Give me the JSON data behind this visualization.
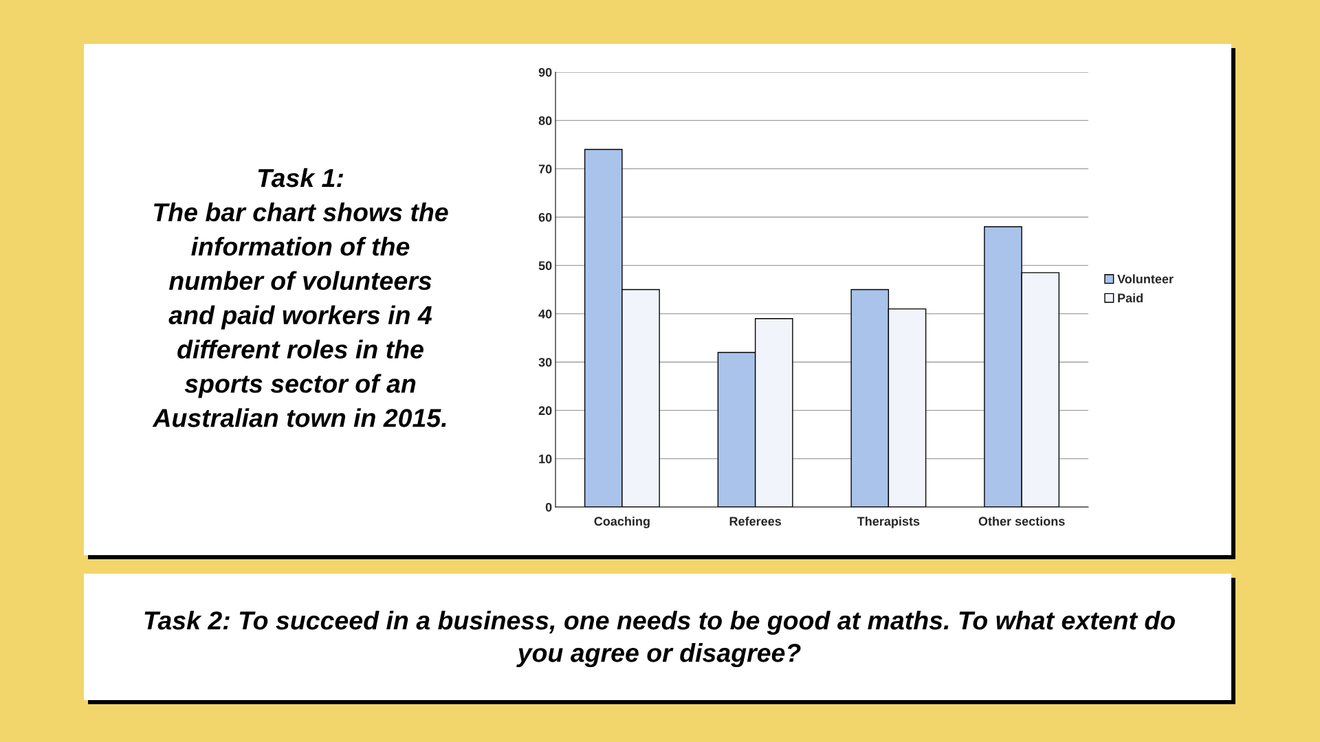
{
  "chart_data": {
    "type": "bar",
    "categories": [
      "Coaching",
      "Referees",
      "Therapists",
      "Other sections"
    ],
    "series": [
      {
        "name": "Volunteer",
        "color": "#a9c3ea",
        "values": [
          74,
          32,
          45,
          58
        ]
      },
      {
        "name": "Paid",
        "color": "#f1f5fb",
        "values": [
          45,
          39,
          41,
          48.5
        ]
      }
    ],
    "ylim": [
      0,
      90
    ],
    "yticks": [
      0,
      10,
      20,
      30,
      40,
      50,
      60,
      70,
      80,
      90
    ],
    "grid": "y",
    "legend": "right",
    "annotations": [
      "Task 1:\nThe bar chart shows the\ninformation of the\nnumber of volunteers\nand paid workers in 4\ndifferent roles in the\nsports sector of an\nAustralian town in 2015.",
      "Task 2: To succeed in a business, one needs to be good at maths. To what extent do\nyou agree or disagree?"
    ]
  }
}
